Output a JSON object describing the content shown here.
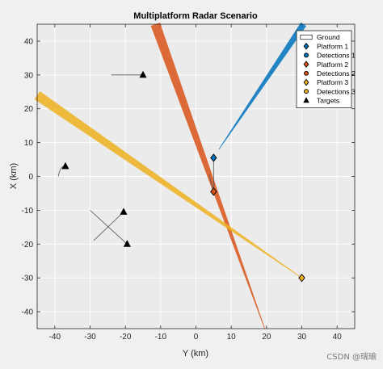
{
  "chart_data": {
    "type": "scatter",
    "title": "Multiplatform Radar Scenario",
    "xlabel": "Y (km)",
    "ylabel": "X (km)",
    "xlim": [
      -45,
      45
    ],
    "ylim": [
      -45,
      45
    ],
    "xticks": [
      -40,
      -30,
      -20,
      -10,
      0,
      10,
      20,
      30,
      40
    ],
    "yticks": [
      -40,
      -30,
      -20,
      -10,
      0,
      10,
      20,
      30,
      40
    ],
    "grid": true,
    "legend_position": "top-right",
    "legend": [
      {
        "label": "Ground",
        "marker": "rect",
        "color": "#ffffff",
        "edge": "#333333"
      },
      {
        "label": "Platform 1",
        "marker": "diamond",
        "color": "#0072BD",
        "edge": "#000000"
      },
      {
        "label": "Detections 1",
        "marker": "circle",
        "color": "#0072BD",
        "edge": "#000000"
      },
      {
        "label": "Platform 2",
        "marker": "diamond",
        "color": "#D95319",
        "edge": "#000000"
      },
      {
        "label": "Detections 2",
        "marker": "circle",
        "color": "#D95319",
        "edge": "#000000"
      },
      {
        "label": "Platform 3",
        "marker": "diamond",
        "color": "#EDB120",
        "edge": "#000000"
      },
      {
        "label": "Detections 3",
        "marker": "circle",
        "color": "#EDB120",
        "edge": "#000000"
      },
      {
        "label": "Targets",
        "marker": "triangle",
        "color": "#000000",
        "edge": "#000000"
      }
    ],
    "series": [
      {
        "name": "Platform 1",
        "color": "#0072BD",
        "points": [
          [
            5,
            5.5
          ]
        ],
        "track": [
          [
            5,
            -4
          ],
          [
            5,
            5.5
          ]
        ]
      },
      {
        "name": "Platform 2",
        "color": "#D95319",
        "points": [
          [
            5,
            -4.5
          ]
        ],
        "track": [
          [
            3.8,
            0.5
          ],
          [
            5,
            -4.5
          ]
        ]
      },
      {
        "name": "Platform 3",
        "color": "#EDB120",
        "points": [
          [
            30,
            -30
          ]
        ],
        "track": []
      },
      {
        "name": "Targets",
        "color": "#000000",
        "points": [
          [
            -15,
            30
          ],
          [
            -37,
            3
          ],
          [
            -20.5,
            -10.5
          ],
          [
            -19.5,
            -20
          ]
        ]
      }
    ],
    "target_tracks": [
      [
        [
          -24,
          30
        ],
        [
          -15,
          30
        ]
      ],
      [
        [
          -39,
          0
        ],
        [
          -37,
          3
        ]
      ],
      [
        [
          -30,
          -10
        ],
        [
          -19.5,
          -20
        ]
      ],
      [
        [
          -29,
          -19
        ],
        [
          -20.5,
          -10.5
        ]
      ]
    ],
    "beams": [
      {
        "name": "Detections 1",
        "color": "#0072BD",
        "from": [
          6.5,
          8
        ],
        "to": [
          30.5,
          45
        ]
      },
      {
        "name": "Detections 2",
        "color": "#D95319",
        "from": [
          -11.5,
          45
        ],
        "to": [
          19.5,
          -45
        ]
      },
      {
        "name": "Detections 3",
        "color": "#EDB120",
        "from": [
          -45,
          24
        ],
        "to": [
          30,
          -30
        ]
      }
    ]
  },
  "watermark": "CSDN @瑞瑜"
}
